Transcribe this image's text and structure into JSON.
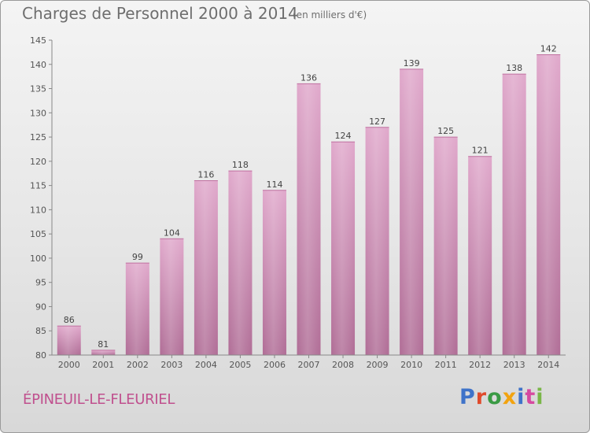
{
  "chart_data": {
    "type": "bar",
    "title": "Charges de Personnel 2000 à 2014",
    "unit_note": "(en milliers d'€)",
    "categories": [
      "2000",
      "2001",
      "2002",
      "2003",
      "2004",
      "2005",
      "2006",
      "2007",
      "2008",
      "2009",
      "2010",
      "2011",
      "2012",
      "2013",
      "2014"
    ],
    "values": [
      86,
      81,
      99,
      104,
      116,
      118,
      114,
      136,
      124,
      127,
      139,
      125,
      121,
      138,
      142
    ],
    "ylim": [
      80,
      145
    ],
    "yticks": [
      80,
      85,
      90,
      95,
      100,
      105,
      110,
      115,
      120,
      125,
      130,
      135,
      140,
      145
    ],
    "grid": false,
    "bar_color": "#d28cb5",
    "xlabel": "",
    "ylabel": ""
  },
  "footer": {
    "location": "ÉPINEUIL-LE-FLEURIEL",
    "logo": "Proxiti",
    "logo_colors": [
      "#3f73c9",
      "#e04a2b",
      "#3a9a44",
      "#f2a30f",
      "#3f73c9",
      "#d64aa0",
      "#7ab648"
    ]
  }
}
